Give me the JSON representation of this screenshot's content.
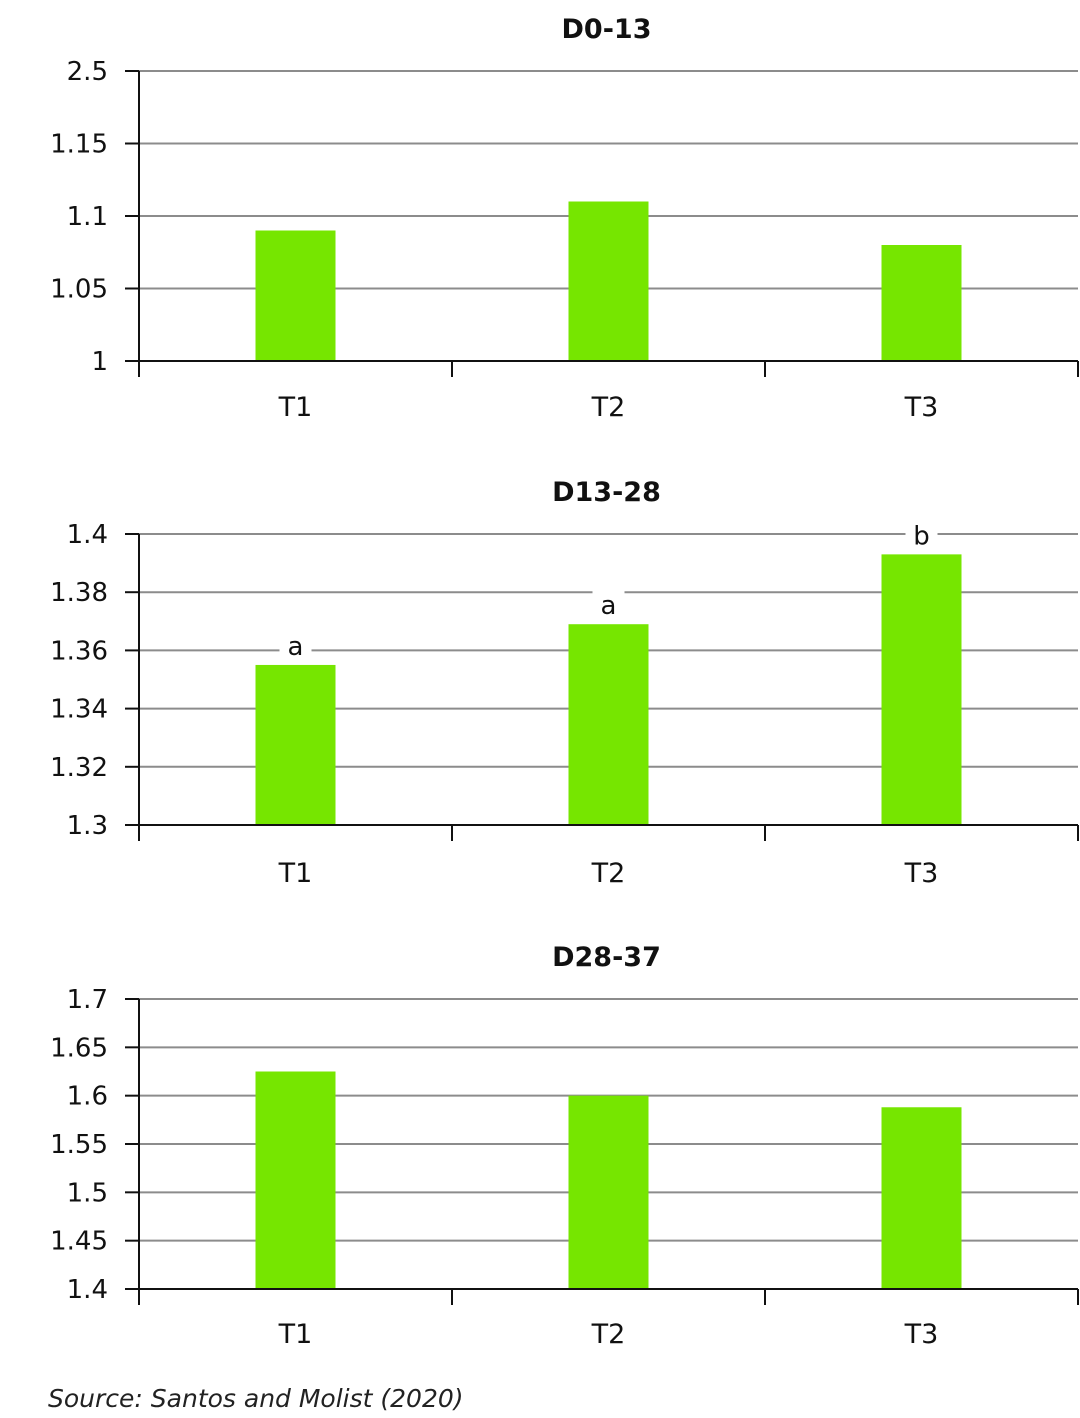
{
  "source_note": "Source: Santos and Molist (2020)",
  "bar_color": "#76e600",
  "chart_data": [
    {
      "type": "bar",
      "title": "D0-13",
      "categories": [
        "T1",
        "T2",
        "T3"
      ],
      "series": [
        {
          "values": [
            1.09,
            1.11,
            1.08
          ]
        }
      ],
      "yticks": [
        1,
        1.05,
        1.1,
        1.15,
        2.5
      ],
      "ytick_labels": [
        "1",
        "1.05",
        "1.1",
        "1.15",
        "2.5"
      ],
      "ylim": [
        1,
        2.5
      ],
      "annotations": [],
      "grid": true
    },
    {
      "type": "bar",
      "title": "D13-28",
      "categories": [
        "T1",
        "T2",
        "T3"
      ],
      "series": [
        {
          "values": [
            1.355,
            1.369,
            1.393
          ]
        }
      ],
      "yticks": [
        1.3,
        1.32,
        1.34,
        1.36,
        1.38,
        1.4
      ],
      "ytick_labels": [
        "1.3",
        "1.32",
        "1.34",
        "1.36",
        "1.38",
        "1.4"
      ],
      "ylim": [
        1.3,
        1.4
      ],
      "annotations": [
        "a",
        "a",
        "b"
      ],
      "grid": true
    },
    {
      "type": "bar",
      "title": "D28-37",
      "categories": [
        "T1",
        "T2",
        "T3"
      ],
      "series": [
        {
          "values": [
            1.625,
            1.6,
            1.588
          ]
        }
      ],
      "yticks": [
        1.4,
        1.45,
        1.5,
        1.55,
        1.6,
        1.65,
        1.7
      ],
      "ytick_labels": [
        "1.4",
        "1.45",
        "1.5",
        "1.55",
        "1.6",
        "1.65",
        "1.7"
      ],
      "ylim": [
        1.4,
        1.7
      ],
      "annotations": [],
      "grid": true
    }
  ]
}
